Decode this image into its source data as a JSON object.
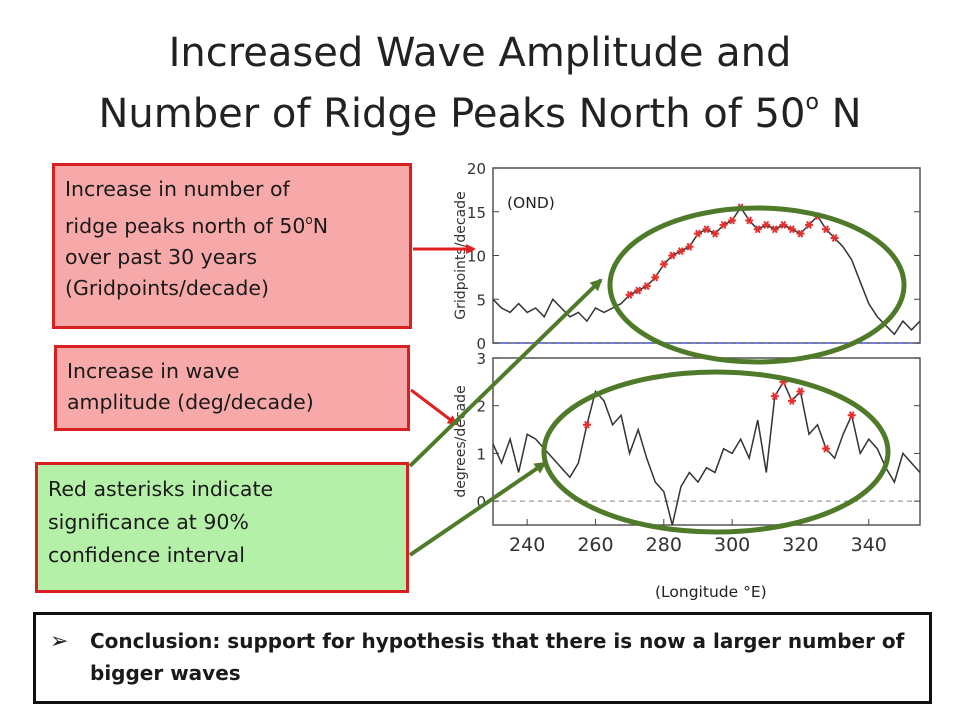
{
  "slide": {
    "title_line1": "Increased Wave Amplitude and",
    "title_line2": "Number of Ridge Peaks North of 50",
    "title_sup": "o",
    "title_end": " N",
    "box_ridge": {
      "line1": "Increase in number of",
      "line2_pre": "ridge peaks north of 50",
      "line2_sup": "o",
      "line2_post": "N",
      "line3": "over past 30 years",
      "line4": "(Gridpoints/decade)"
    },
    "box_wave": {
      "line1": "Increase in wave",
      "line2": "amplitude (deg/decade)"
    },
    "box_sig": {
      "line1": "Red asterisks indicate",
      "line2": "significance at 90%",
      "line3": "confidence interval"
    },
    "season_label": "(OND)",
    "longitude_label": "(Longitude °E)",
    "conclusion": "Conclusion: support for hypothesis that there is now a larger number of bigger waves",
    "colors": {
      "red_box_border": "#d92020",
      "pink_fill": "#f7a9a9",
      "green_fill": "#b5f0a8",
      "ellipse": "#4f7a2a",
      "arrow_red": "#e02020",
      "asterisk": "#e53030"
    }
  },
  "chart_data": [
    {
      "type": "line",
      "panel": "top",
      "ylabel": "Gridpoints/decade",
      "ylim": [
        0,
        20
      ],
      "yticks": [
        0,
        5,
        10,
        15,
        20
      ],
      "xlim": [
        230,
        355
      ],
      "x": [
        230,
        232.5,
        235,
        237.5,
        240,
        242.5,
        245,
        247.5,
        250,
        252.5,
        255,
        257.5,
        260,
        262.5,
        265,
        267.5,
        270,
        272.5,
        275,
        277.5,
        280,
        282.5,
        285,
        287.5,
        290,
        292.5,
        295,
        297.5,
        300,
        302.5,
        305,
        307.5,
        310,
        312.5,
        315,
        317.5,
        320,
        322.5,
        325,
        327.5,
        330,
        332.5,
        335,
        337.5,
        340,
        342.5,
        345,
        347.5,
        350,
        352.5,
        355
      ],
      "y": [
        5,
        4,
        3.5,
        4.5,
        3.5,
        4,
        3,
        5,
        4,
        3,
        3.5,
        2.5,
        4,
        3.5,
        4,
        4.5,
        5.5,
        6,
        6.5,
        7.5,
        9,
        10,
        10.5,
        11,
        12.5,
        13,
        12.5,
        13.5,
        14,
        15.5,
        14,
        13,
        13.5,
        13,
        13.5,
        13,
        12.5,
        13.5,
        14.5,
        13,
        12,
        11,
        9.5,
        7,
        4.5,
        3,
        2,
        1,
        2.5,
        1.5,
        2.5
      ],
      "significant_x": [
        270,
        272.5,
        275,
        277.5,
        280,
        282.5,
        285,
        287.5,
        290,
        292.5,
        295,
        297.5,
        300,
        302.5,
        305,
        307.5,
        310,
        312.5,
        315,
        317.5,
        320,
        322.5,
        325,
        327.5,
        330
      ]
    },
    {
      "type": "line",
      "panel": "bottom",
      "ylabel": "degrees/decade",
      "ylim": [
        -0.5,
        3
      ],
      "yticks": [
        0,
        1,
        2,
        3
      ],
      "xlim": [
        230,
        355
      ],
      "xticks": [
        240,
        260,
        280,
        300,
        320,
        340
      ],
      "x": [
        230,
        232.5,
        235,
        237.5,
        240,
        242.5,
        245,
        247.5,
        250,
        252.5,
        255,
        257.5,
        260,
        262.5,
        265,
        267.5,
        270,
        272.5,
        275,
        277.5,
        280,
        282.5,
        285,
        287.5,
        290,
        292.5,
        295,
        297.5,
        300,
        302.5,
        305,
        307.5,
        310,
        312.5,
        315,
        317.5,
        320,
        322.5,
        325,
        327.5,
        330,
        332.5,
        335,
        337.5,
        340,
        342.5,
        345,
        347.5,
        350,
        352.5,
        355
      ],
      "y": [
        1.2,
        0.8,
        1.3,
        0.6,
        1.4,
        1.3,
        1.1,
        0.9,
        0.7,
        0.5,
        0.8,
        1.6,
        2.3,
        2.1,
        1.6,
        1.8,
        1.0,
        1.5,
        0.9,
        0.4,
        0.2,
        -0.5,
        0.3,
        0.6,
        0.4,
        0.7,
        0.6,
        1.1,
        1.0,
        1.3,
        0.9,
        1.7,
        0.6,
        2.2,
        2.5,
        2.1,
        2.3,
        1.4,
        1.6,
        1.1,
        0.9,
        1.4,
        1.8,
        1.0,
        1.3,
        1.1,
        0.7,
        0.4,
        1.0,
        0.8,
        0.6
      ],
      "significant_x": [
        257.5,
        312.5,
        315,
        317.5,
        320,
        327.5,
        335
      ]
    }
  ]
}
